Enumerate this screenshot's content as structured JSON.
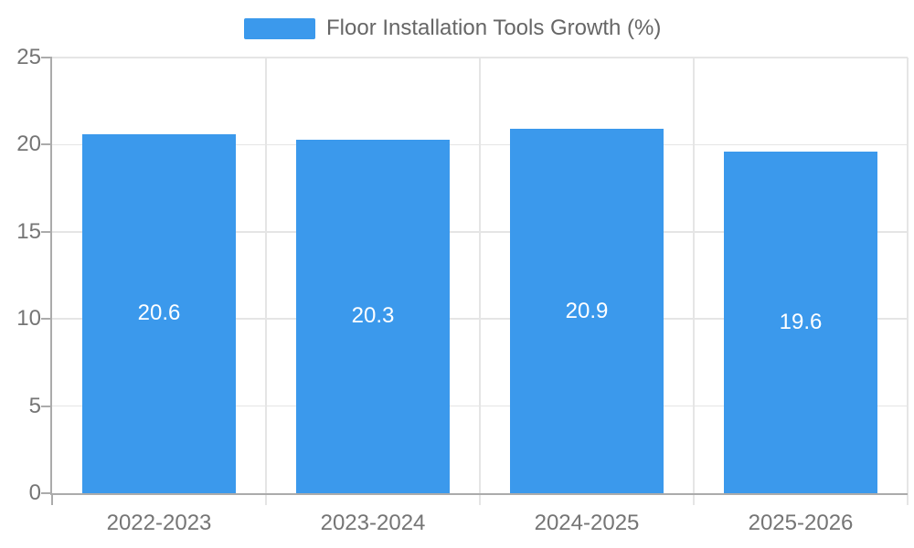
{
  "legend": {
    "label": "Floor Installation Tools Growth (%)"
  },
  "chart_data": {
    "type": "bar",
    "title": "Floor Installation Tools Growth (%)",
    "categories": [
      "2022-2023",
      "2023-2024",
      "2024-2025",
      "2025-2026"
    ],
    "values": [
      20.6,
      20.3,
      20.9,
      19.6
    ],
    "series": [
      {
        "name": "Floor Installation Tools Growth (%)",
        "values": [
          20.6,
          20.3,
          20.9,
          19.6
        ]
      }
    ],
    "xlabel": "",
    "ylabel": "",
    "ylim": [
      0,
      25
    ],
    "yticks": [
      0,
      5,
      10,
      15,
      20,
      25
    ],
    "grid": true,
    "legend_position": "top-center",
    "value_labels_inside_bars": true
  },
  "colors": {
    "bar": "#3b99ec",
    "axis": "#ababab",
    "gridline": "#e5e5e5",
    "tick_label": "#757575",
    "legend_text": "#666666",
    "value_text": "#ffffff",
    "background": "#ffffff"
  }
}
